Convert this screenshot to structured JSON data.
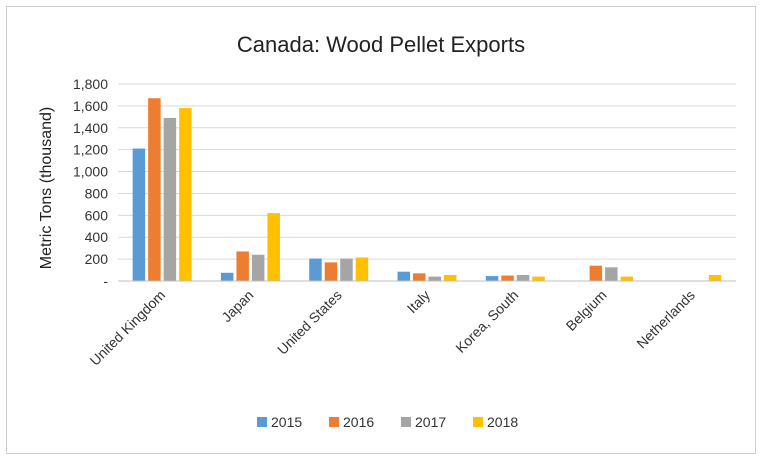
{
  "chart_data": {
    "type": "bar",
    "title": "Canada: Wood Pellet Exports",
    "xlabel": "",
    "ylabel": "Metric Tons (thousand)",
    "ylim": [
      0,
      1800
    ],
    "yticks": [
      0,
      200,
      400,
      600,
      800,
      1000,
      1200,
      1400,
      1600,
      1800
    ],
    "ytick_labels": [
      "-",
      "200",
      "400",
      "600",
      "800",
      "1,000",
      "1,200",
      "1,400",
      "1,600",
      "1,800"
    ],
    "grid": true,
    "legend_position": "bottom",
    "categories": [
      "United Kingdom",
      "Japan",
      "United States",
      "Italy",
      "Korea, South",
      "Belgium",
      "Netherlands"
    ],
    "series": [
      {
        "name": "2015",
        "color": "#5B9BD5",
        "values": [
          1210,
          75,
          205,
          85,
          45,
          0,
          0
        ]
      },
      {
        "name": "2016",
        "color": "#ED7D31",
        "values": [
          1670,
          270,
          170,
          70,
          50,
          140,
          0
        ]
      },
      {
        "name": "2017",
        "color": "#A5A5A5",
        "values": [
          1490,
          240,
          205,
          40,
          55,
          125,
          0
        ]
      },
      {
        "name": "2018",
        "color": "#FFC000",
        "values": [
          1580,
          620,
          215,
          55,
          40,
          40,
          55
        ]
      }
    ]
  }
}
